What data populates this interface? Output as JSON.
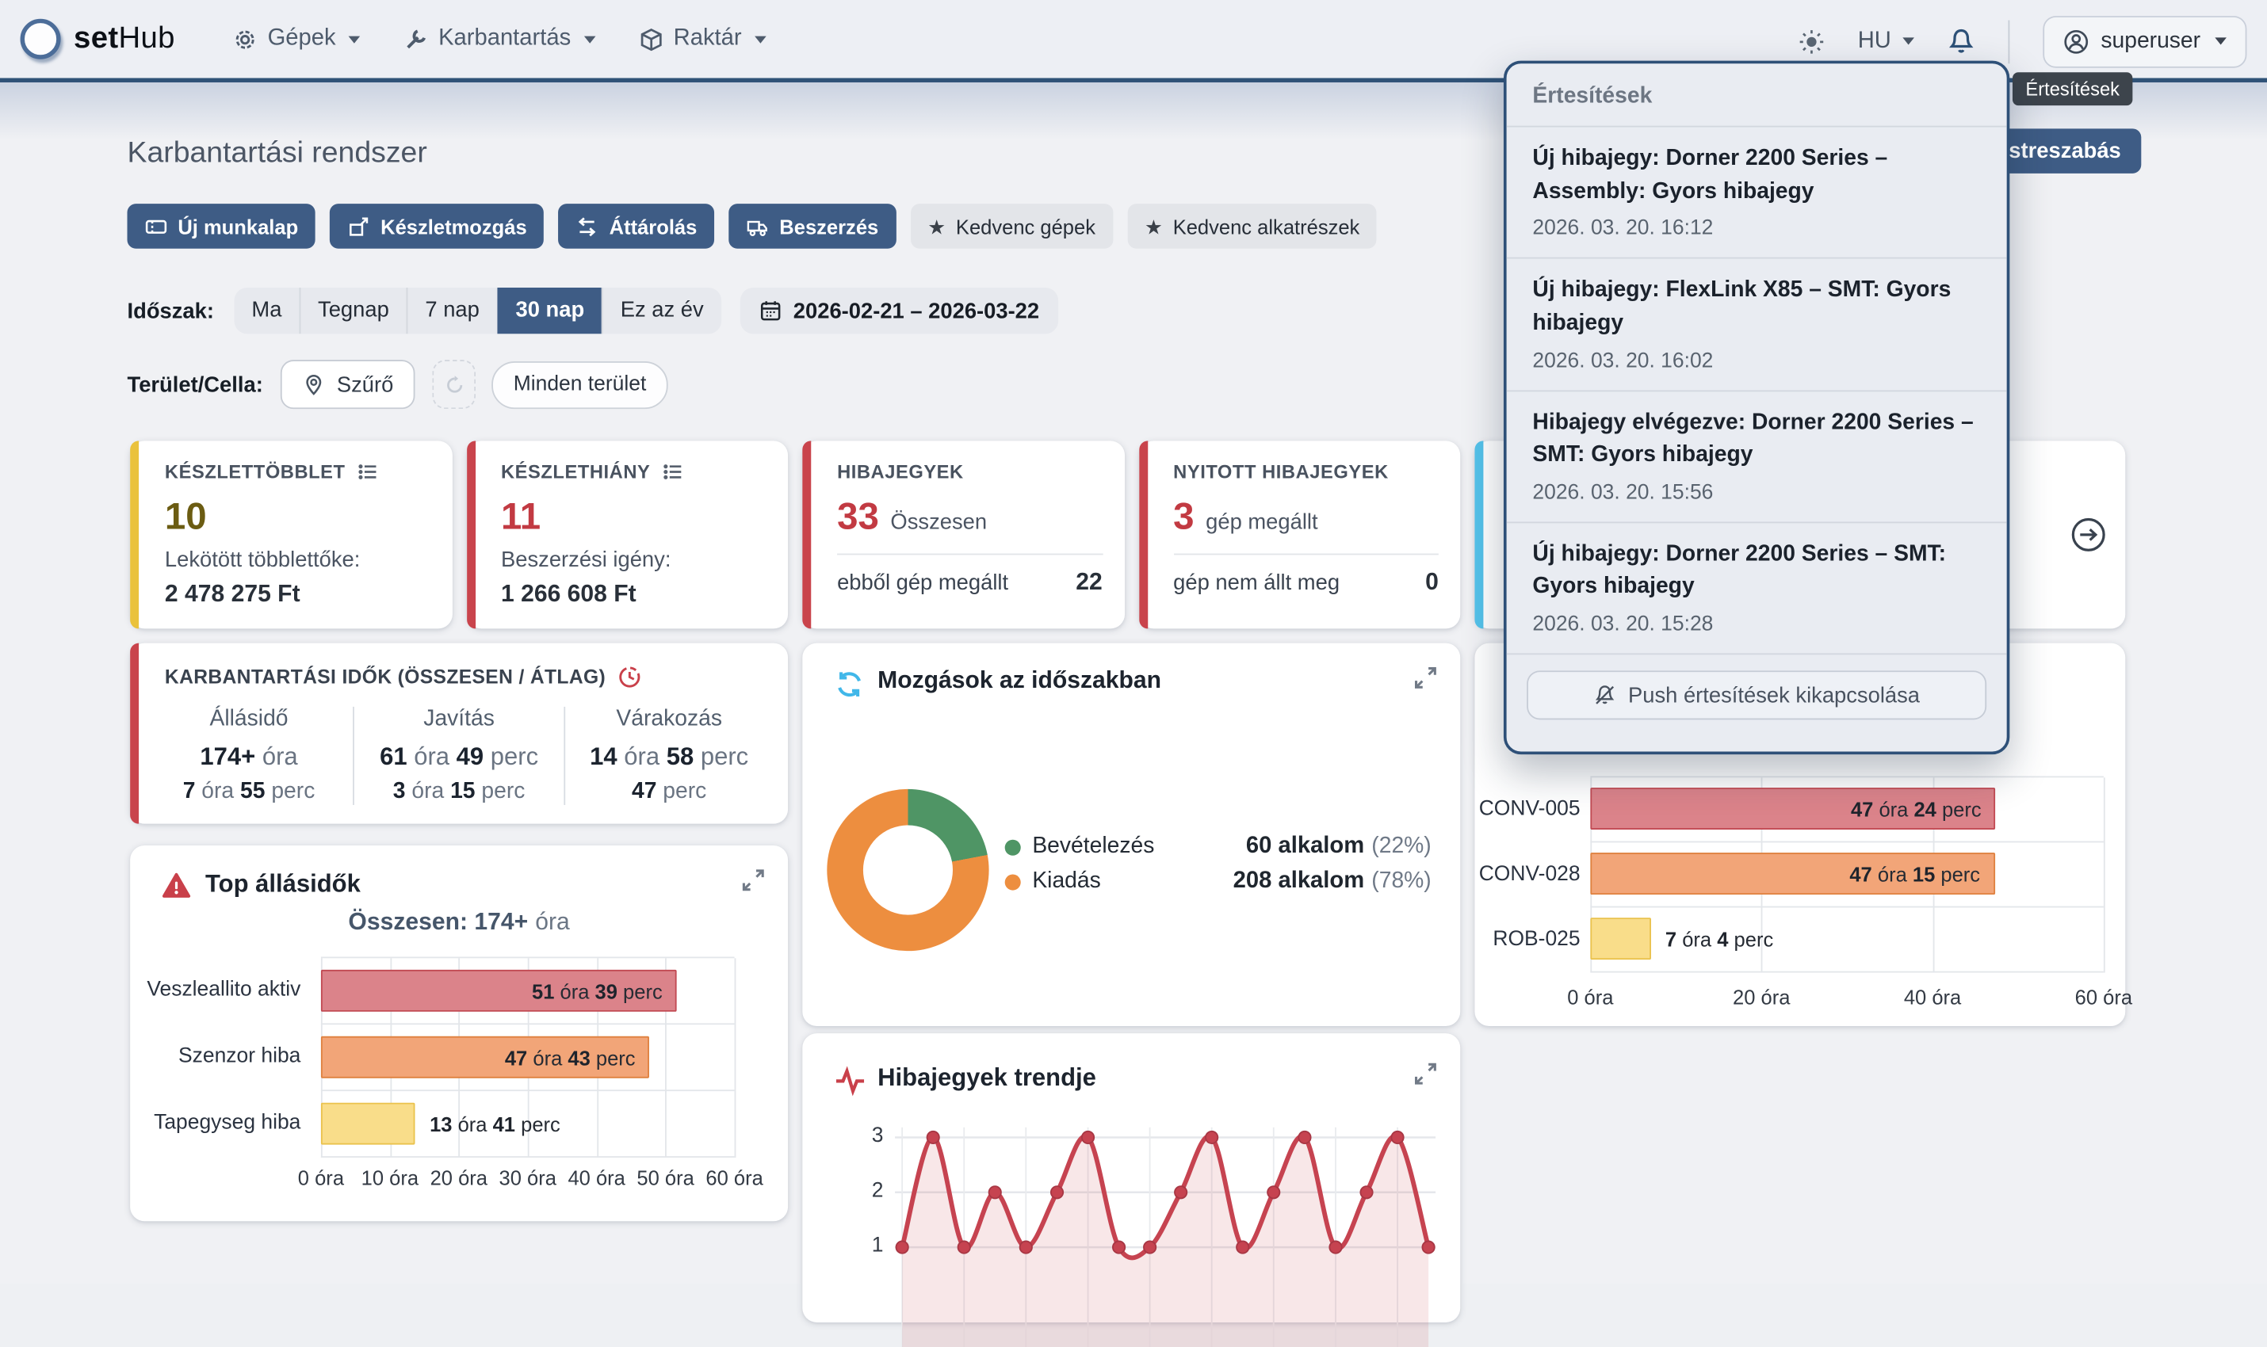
{
  "navbar": {
    "brand_bold": "set",
    "brand_rest": "Hub",
    "menus": [
      {
        "label": "Gépek",
        "icon": "gear-icon"
      },
      {
        "label": "Karbantartás",
        "icon": "wrench-icon"
      },
      {
        "label": "Raktár",
        "icon": "package-icon"
      }
    ],
    "language": "HU",
    "user": "superuser"
  },
  "tooltip": {
    "text": "Értesítések"
  },
  "customize_button": {
    "label": "Testreszabás"
  },
  "page": {
    "title": "Karbantartási rendszer",
    "primary_actions": [
      {
        "label": "Új munkalap",
        "icon": "ticket-icon"
      },
      {
        "label": "Készletmozgás",
        "icon": "box-arrow-icon"
      },
      {
        "label": "Áttárolás",
        "icon": "transfer-icon"
      },
      {
        "label": "Beszerzés",
        "icon": "truck-icon"
      }
    ],
    "favorite_actions": [
      {
        "label": "Kedvenc gépek",
        "icon": "star-icon"
      },
      {
        "label": "Kedvenc alkatrészek",
        "icon": "star-icon"
      }
    ],
    "period": {
      "label": "Időszak:",
      "options": [
        "Ma",
        "Tegnap",
        "7 nap",
        "30 nap",
        "Ez az év"
      ],
      "selected": "30 nap",
      "date_range": "2026-02-21 – 2026-03-22"
    },
    "area": {
      "label": "Terület/Cella:",
      "filter_button": "Szűrő",
      "all_areas_badge": "Minden terület"
    }
  },
  "kpis": [
    {
      "title": "KÉSZLETTÖBBLET",
      "value": "10",
      "desc": "Lekötött többlettőke:",
      "amount": "2 478 275 Ft",
      "accent": "#eac23c",
      "value_color": "#6b5c12"
    },
    {
      "title": "KÉSZLETHIÁNY",
      "value": "11",
      "desc": "Beszerzési igény:",
      "amount": "1 266 608 Ft",
      "accent": "#c9444c",
      "value_color": "#c23a42"
    },
    {
      "title": "HIBAJEGYEK",
      "value": "33",
      "value_suffix": "Összesen",
      "footer_label": "ebből gép megállt",
      "footer_value": "22",
      "accent": "#c9444c",
      "value_color": "#c23a42"
    },
    {
      "title": "NYITOTT HIBAJEGYEK",
      "value": "3",
      "value_suffix": "gép megállt",
      "footer_label": "gép nem állt meg",
      "footer_value": "0",
      "accent": "#c9444c",
      "value_color": "#c23a42"
    }
  ],
  "more_card": {
    "accent": "#54c2ea"
  },
  "maintenance_times": {
    "title": "KARBANTARTÁSI IDŐK (ÖSSZESEN / ÁTLAG)",
    "accent": "#c9444c",
    "columns": [
      {
        "label": "Állásidő",
        "total": "174+ óra",
        "average": "7 óra 55 perc"
      },
      {
        "label": "Javítás",
        "total": "61 óra 49 perc",
        "average": "3 óra 15 perc"
      },
      {
        "label": "Várakozás",
        "total": "14 óra 58 perc",
        "average": "47 perc"
      }
    ]
  },
  "bar_palette": {
    "red": {
      "fill": "#db838a",
      "border": "#c24a53"
    },
    "orange": {
      "fill": "#f2a578",
      "border": "#df813f"
    },
    "yellow": {
      "fill": "#f9dd8a",
      "border": "#eac24d"
    }
  },
  "chart_data": [
    {
      "id": "movements",
      "type": "pie",
      "donut": true,
      "title": "Mozgások az időszakban",
      "legend_position": "right",
      "series": [
        {
          "name": "Bevételezés",
          "value": 60,
          "pct": 22,
          "count_label": "60 alkalom",
          "pct_label": "(22%)",
          "color": "#4f9565"
        },
        {
          "name": "Kiadás",
          "value": 208,
          "pct": 78,
          "count_label": "208 alkalom",
          "pct_label": "(78%)",
          "color": "#ed8e3f"
        }
      ]
    },
    {
      "id": "top_downtimes",
      "type": "bar",
      "orientation": "horizontal",
      "title": "Top állásidők",
      "subtitle_bold": "Összesen: 174+",
      "subtitle_tail": "óra",
      "categories": [
        "Veszleallito aktiv",
        "Szenzor hiba",
        "Tapegyseg hiba"
      ],
      "values_hours": [
        51.65,
        47.72,
        13.68
      ],
      "value_labels": [
        "51 óra 39 perc",
        "47 óra 43 perc",
        "13 óra 41 perc"
      ],
      "label_inside": [
        true,
        true,
        false
      ],
      "bar_colors": [
        "red",
        "orange",
        "yellow"
      ],
      "x_ticks": [
        "0 óra",
        "10 óra",
        "20 óra",
        "30 óra",
        "40 óra",
        "50 óra",
        "60 óra"
      ],
      "xlim": [
        0,
        60
      ],
      "grid": true
    },
    {
      "id": "machine_downtimes",
      "type": "bar",
      "orientation": "horizontal",
      "categories": [
        "CONV-005",
        "CONV-028",
        "ROB-025"
      ],
      "values_hours": [
        47.4,
        47.25,
        7.07
      ],
      "value_labels": [
        "47 óra 24 perc",
        "47 óra 15 perc",
        "7 óra 4 perc"
      ],
      "label_inside": [
        true,
        true,
        false
      ],
      "bar_colors": [
        "red",
        "orange",
        "yellow"
      ],
      "x_ticks": [
        "0 óra",
        "20 óra",
        "40 óra",
        "60 óra"
      ],
      "xlim": [
        0,
        60
      ],
      "grid": true
    },
    {
      "id": "trend",
      "type": "line",
      "title": "Hibajegyek trendje",
      "values": [
        1,
        3,
        1,
        2,
        1,
        2,
        3,
        1,
        1,
        2,
        3,
        1,
        2,
        3,
        1,
        2,
        3,
        1
      ],
      "y_ticks": [
        1,
        2,
        3
      ],
      "ylim": [
        0,
        3
      ],
      "smooth": true,
      "markers": true,
      "line_color": "#c64350",
      "fill_color": "rgba(198,67,80,0.13)",
      "grid": true
    }
  ],
  "notifications": {
    "header": "Értesítések",
    "items": [
      {
        "title": "Új hibajegy: Dorner 2200 Series – Assembly: Gyors hibajegy",
        "time": "2026. 03. 20. 16:12"
      },
      {
        "title": "Új hibajegy: FlexLink X85 – SMT: Gyors hibajegy",
        "time": "2026. 03. 20. 16:02"
      },
      {
        "title": "Hibajegy elvégezve: Dorner 2200 Series – SMT: Gyors hibajegy",
        "time": "2026. 03. 20. 15:56"
      },
      {
        "title": "Új hibajegy: Dorner 2200 Series – SMT: Gyors hibajegy",
        "time": "2026. 03. 20. 15:28"
      }
    ],
    "mute_button": "Push értesítések kikapcsolása"
  }
}
